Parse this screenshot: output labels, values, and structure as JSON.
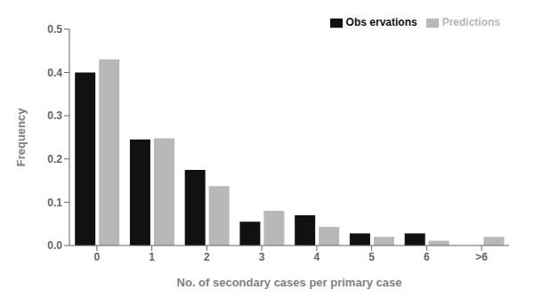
{
  "chart_data": {
    "type": "bar",
    "categories": [
      "0",
      "1",
      "2",
      "3",
      "4",
      "5",
      "6",
      ">6"
    ],
    "series": [
      {
        "name": "Obs ervations",
        "color": "#111111",
        "values": [
          0.4,
          0.245,
          0.175,
          0.055,
          0.07,
          0.028,
          0.028,
          0.0
        ]
      },
      {
        "name": "Predictions",
        "color": "#b8b8b8",
        "values": [
          0.43,
          0.248,
          0.137,
          0.08,
          0.043,
          0.02,
          0.011,
          0.02
        ]
      }
    ],
    "xlabel": "No. of secondary cases per primary case",
    "ylabel": "Frequency",
    "ylim": [
      0,
      0.5
    ],
    "yticks": [
      {
        "value": 0,
        "label": "0.0"
      },
      0.1,
      0.2,
      0.3,
      0.4,
      0.5
    ],
    "grid": false,
    "legend": "upper right"
  }
}
